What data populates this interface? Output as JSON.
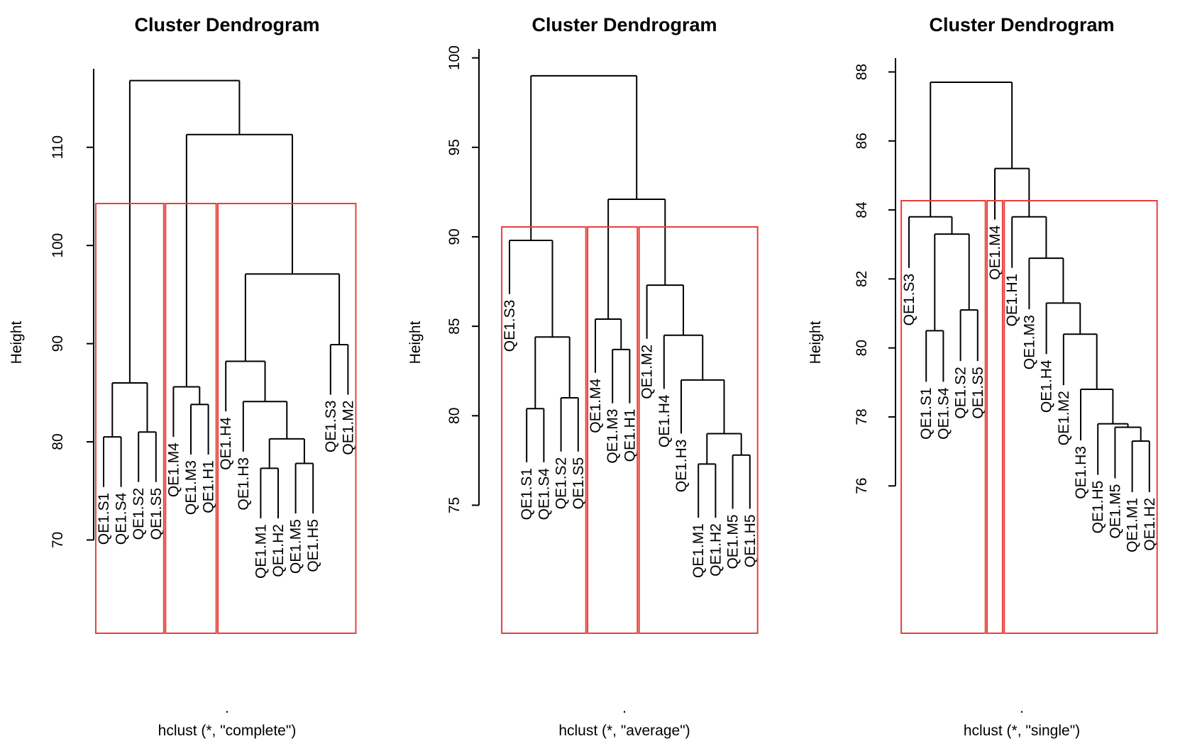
{
  "charts": [
    {
      "type": "dendrogram",
      "title": "Cluster Dendrogram",
      "ylabel": "Height",
      "xlabel_dot": ".",
      "xlabel": "hclust (*, \"complete\")",
      "yticks": [
        "70",
        "80",
        "90",
        "100",
        "110"
      ]
    },
    {
      "type": "dendrogram",
      "title": "Cluster Dendrogram",
      "ylabel": "Height",
      "xlabel_dot": ".",
      "xlabel": "hclust (*, \"average\")",
      "yticks": [
        "75",
        "80",
        "85",
        "90",
        "95",
        "100"
      ]
    },
    {
      "type": "dendrogram",
      "title": "Cluster Dendrogram",
      "ylabel": "Height",
      "xlabel_dot": ".",
      "xlabel": "hclust (*, \"single\")",
      "yticks": [
        "76",
        "78",
        "80",
        "82",
        "84",
        "86",
        "88"
      ]
    }
  ],
  "chart_data": [
    {
      "type": "dendrogram",
      "method": "complete",
      "ylim": [
        67,
        118
      ],
      "yticks": [
        70,
        80,
        90,
        100,
        110
      ],
      "box_color": "#e8403a",
      "leaves": [
        "QE1.S1",
        "QE1.S4",
        "QE1.S2",
        "QE1.S5",
        "QE1.M4",
        "QE1.M3",
        "QE1.H1",
        "QE1.H4",
        "QE1.H3",
        "QE1.M1",
        "QE1.H2",
        "QE1.M5",
        "QE1.H5",
        "QE1.S3",
        "QE1.M2"
      ],
      "merges": [
        {
          "left": "QE1.S1",
          "right": "QE1.S4",
          "height": 80.5
        },
        {
          "left": "QE1.S2",
          "right": "QE1.S5",
          "height": 81.0
        },
        {
          "left": "QE1.M3",
          "right": "QE1.H1",
          "height": 83.8
        },
        {
          "left": "QE1.M1",
          "right": "QE1.H2",
          "height": 77.3
        },
        {
          "left": "QE1.M5",
          "right": "QE1.H5",
          "height": 77.8
        },
        {
          "left": "QE1.S3",
          "right": "QE1.M2",
          "height": 89.9
        },
        {
          "left": 3,
          "right": 4,
          "height": 80.3
        },
        {
          "left": "QE1.H3",
          "right": 6,
          "height": 84.1
        },
        {
          "left": "QE1.H4",
          "right": 7,
          "height": 88.2
        },
        {
          "left": 0,
          "right": 1,
          "height": 86.0
        },
        {
          "left": "QE1.M4",
          "right": 2,
          "height": 85.6
        },
        {
          "left": 8,
          "right": 5,
          "height": 97.1
        },
        {
          "left": 10,
          "right": 11,
          "height": 111.3
        },
        {
          "left": 9,
          "right": 12,
          "height": 116.8
        }
      ],
      "clusters": [
        {
          "first": 0,
          "last": 3
        },
        {
          "first": 4,
          "last": 6
        },
        {
          "first": 7,
          "last": 14
        }
      ]
    },
    {
      "type": "dendrogram",
      "method": "average",
      "ylim": [
        70.5,
        100.5
      ],
      "yticks": [
        75,
        80,
        85,
        90,
        95,
        100
      ],
      "box_color": "#e8403a",
      "leaves": [
        "QE1.S3",
        "QE1.S1",
        "QE1.S4",
        "QE1.S2",
        "QE1.S5",
        "QE1.M4",
        "QE1.M3",
        "QE1.H1",
        "QE1.M2",
        "QE1.H4",
        "QE1.H3",
        "QE1.M1",
        "QE1.H2",
        "QE1.M5",
        "QE1.H5"
      ],
      "merges": [
        {
          "left": "QE1.S1",
          "right": "QE1.S4",
          "height": 80.4
        },
        {
          "left": "QE1.S2",
          "right": "QE1.S5",
          "height": 81.0
        },
        {
          "left": 0,
          "right": 1,
          "height": 84.4
        },
        {
          "left": "QE1.S3",
          "right": 2,
          "height": 89.8
        },
        {
          "left": "QE1.M3",
          "right": "QE1.H1",
          "height": 83.7
        },
        {
          "left": "QE1.M4",
          "right": 4,
          "height": 85.4
        },
        {
          "left": "QE1.M1",
          "right": "QE1.H2",
          "height": 77.3
        },
        {
          "left": "QE1.M5",
          "right": "QE1.H5",
          "height": 77.8
        },
        {
          "left": 6,
          "right": 7,
          "height": 79.0
        },
        {
          "left": "QE1.H3",
          "right": 8,
          "height": 82.0
        },
        {
          "left": "QE1.H4",
          "right": 9,
          "height": 84.5
        },
        {
          "left": "QE1.M2",
          "right": 10,
          "height": 87.3
        },
        {
          "left": 5,
          "right": 11,
          "height": 92.1
        },
        {
          "left": 3,
          "right": 12,
          "height": 99.0
        }
      ],
      "clusters": [
        {
          "first": 0,
          "last": 4
        },
        {
          "first": 5,
          "last": 7
        },
        {
          "first": 8,
          "last": 14
        }
      ]
    },
    {
      "type": "dendrogram",
      "method": "single",
      "ylim": [
        73.6,
        88.4
      ],
      "yticks": [
        76,
        78,
        80,
        82,
        84,
        86,
        88
      ],
      "box_color": "#e8403a",
      "leaves": [
        "QE1.S3",
        "QE1.S1",
        "QE1.S4",
        "QE1.S2",
        "QE1.S5",
        "QE1.M4",
        "QE1.H1",
        "QE1.M3",
        "QE1.H4",
        "QE1.M2",
        "QE1.H3",
        "QE1.H5",
        "QE1.M5",
        "QE1.M1",
        "QE1.H2"
      ],
      "merges": [
        {
          "left": "QE1.S1",
          "right": "QE1.S4",
          "height": 80.5
        },
        {
          "left": "QE1.S2",
          "right": "QE1.S5",
          "height": 81.1
        },
        {
          "left": 0,
          "right": 1,
          "height": 83.3
        },
        {
          "left": "QE1.S3",
          "right": 2,
          "height": 83.8
        },
        {
          "left": "QE1.M1",
          "right": "QE1.H2",
          "height": 77.3
        },
        {
          "left": "QE1.M5",
          "right": 4,
          "height": 77.7
        },
        {
          "left": "QE1.H5",
          "right": 5,
          "height": 77.8
        },
        {
          "left": "QE1.H3",
          "right": 6,
          "height": 78.8
        },
        {
          "left": "QE1.M2",
          "right": 7,
          "height": 80.4
        },
        {
          "left": "QE1.H4",
          "right": 8,
          "height": 81.3
        },
        {
          "left": "QE1.M3",
          "right": 9,
          "height": 82.6
        },
        {
          "left": "QE1.H1",
          "right": 10,
          "height": 83.8
        },
        {
          "left": "QE1.M4",
          "right": 11,
          "height": 85.2
        },
        {
          "left": 3,
          "right": 12,
          "height": 87.7
        }
      ],
      "clusters": [
        {
          "first": 0,
          "last": 4
        },
        {
          "first": 5,
          "last": 5
        },
        {
          "first": 6,
          "last": 14
        }
      ]
    }
  ]
}
